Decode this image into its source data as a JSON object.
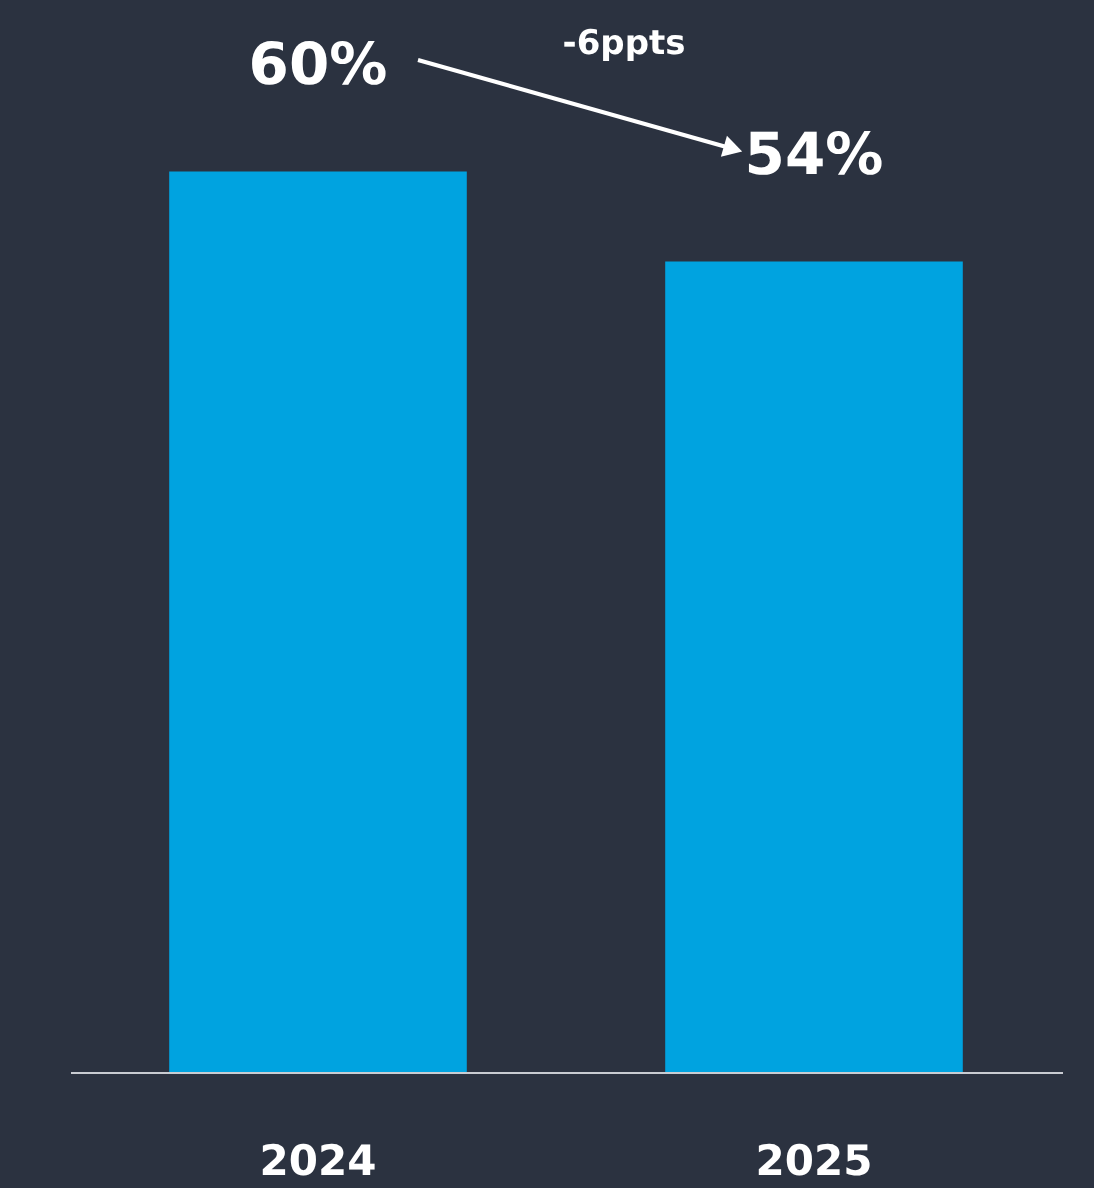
{
  "chart_data": {
    "type": "bar",
    "categories": [
      "2024",
      "2025"
    ],
    "values": [
      60,
      54
    ],
    "color": "#00a3e0",
    "data_labels": true,
    "value_labels": [
      "60%",
      "54%"
    ],
    "annotations": [
      "-6ppts"
    ]
  }
}
